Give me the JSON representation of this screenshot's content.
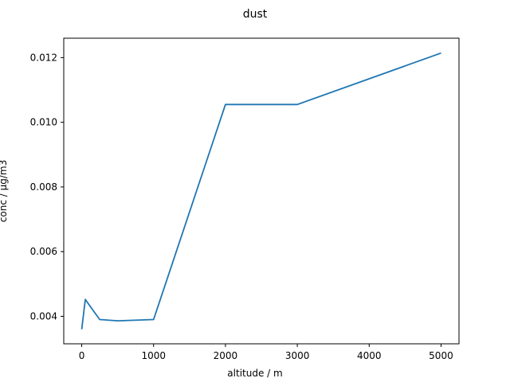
{
  "chart_data": {
    "type": "line",
    "title": "dust",
    "xlabel": "altitude / m",
    "ylabel": "conc / µg/m3",
    "xlim": [
      -250,
      5250
    ],
    "ylim": [
      0.00315,
      0.0126
    ],
    "xticks": [
      0,
      1000,
      2000,
      3000,
      4000,
      5000
    ],
    "yticks": [
      0.004,
      0.006,
      0.008,
      0.01,
      0.012
    ],
    "xtick_labels": [
      "0",
      "1000",
      "2000",
      "3000",
      "4000",
      "5000"
    ],
    "ytick_labels": [
      "0.004",
      "0.006",
      "0.008",
      "0.010",
      "0.012"
    ],
    "grid": false,
    "legend": false,
    "series": [
      {
        "color": "#1f77b4",
        "x": [
          0,
          50,
          250,
          500,
          1000,
          2000,
          3000,
          5000
        ],
        "y": [
          0.0036,
          0.00452,
          0.0039,
          0.00386,
          0.0039,
          0.01055,
          0.01055,
          0.01214
        ]
      }
    ]
  }
}
